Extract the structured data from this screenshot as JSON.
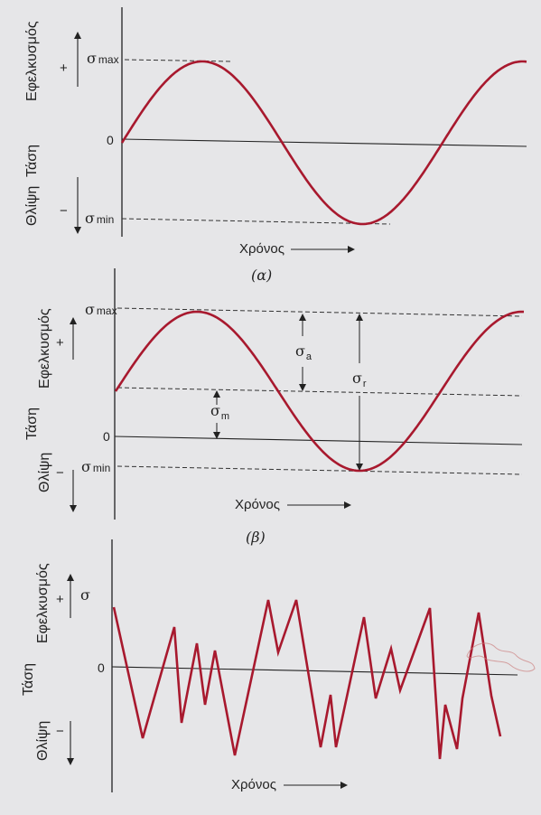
{
  "panel_a": {
    "y_label_tension": "Εφελκυσμός",
    "y_label_stress": "Τάση",
    "y_label_compression": "Θλίψη",
    "plus": "+",
    "minus": "−",
    "zero": "0",
    "sigma_max": "σ",
    "sigma_max_sub": "max",
    "sigma_min": "σ",
    "sigma_min_sub": "min",
    "x_label": "Χρόνος",
    "caption": "(α)"
  },
  "panel_b": {
    "y_label_tension": "Εφελκυσμός",
    "y_label_stress": "Τάση",
    "y_label_compression": "Θλίψη",
    "plus": "+",
    "minus": "−",
    "zero": "0",
    "sigma_max": "σ",
    "sigma_max_sub": "max",
    "sigma_min": "σ",
    "sigma_min_sub": "min",
    "sigma_a": "σ",
    "sigma_a_sub": "a",
    "sigma_r": "σ",
    "sigma_r_sub": "r",
    "sigma_m": "σ",
    "sigma_m_sub": "m",
    "x_label": "Χρόνος",
    "caption": "(β)"
  },
  "panel_c": {
    "y_label_tension": "Εφελκυσμός",
    "y_label_stress": "Τάση",
    "y_label_compression": "Θλίψη",
    "plus": "+",
    "minus": "−",
    "sigma": "σ",
    "zero": "0",
    "x_label": "Χρόνος"
  },
  "colors": {
    "curve": "#a8192e",
    "ink": "#222222",
    "background": "#e6e6e8"
  }
}
